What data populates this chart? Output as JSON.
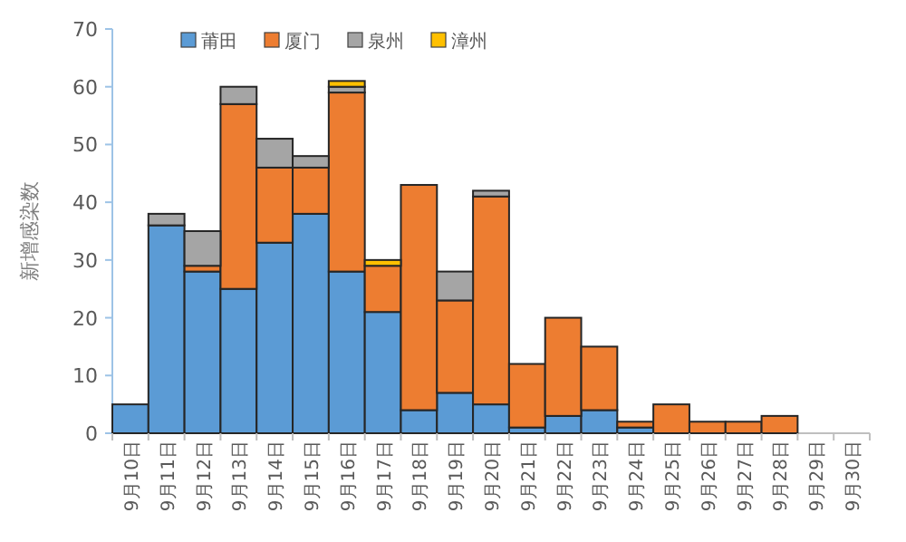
{
  "chart_data": {
    "type": "bar",
    "stacked": true,
    "ylabel": "新增感染数",
    "legend": "top",
    "categories": [
      "9月10日",
      "9月11日",
      "9月12日",
      "9月13日",
      "9月14日",
      "9月15日",
      "9月16日",
      "9月17日",
      "9月18日",
      "9月19日",
      "9月20日",
      "9月21日",
      "9月22日",
      "9月23日",
      "9月24日",
      "9月25日",
      "9月26日",
      "9月27日",
      "9月28日",
      "9月29日",
      "9月30日"
    ],
    "series": [
      {
        "name": "莆田",
        "color": "#5b9bd5",
        "values": [
          5,
          36,
          28,
          25,
          33,
          38,
          28,
          21,
          4,
          7,
          5,
          1,
          3,
          4,
          1,
          0,
          0,
          0,
          0,
          0,
          0
        ]
      },
      {
        "name": "厦门",
        "color": "#ed7d31",
        "values": [
          0,
          0,
          1,
          32,
          13,
          8,
          31,
          8,
          39,
          16,
          36,
          11,
          17,
          11,
          1,
          5,
          2,
          2,
          3,
          0,
          0
        ]
      },
      {
        "name": "泉州",
        "color": "#a5a5a5",
        "values": [
          0,
          2,
          6,
          3,
          5,
          2,
          1,
          0,
          0,
          5,
          1,
          0,
          0,
          0,
          0,
          0,
          0,
          0,
          0,
          0,
          0
        ]
      },
      {
        "name": "漳州",
        "color": "#ffc000",
        "values": [
          0,
          0,
          0,
          0,
          0,
          0,
          1,
          1,
          0,
          0,
          0,
          0,
          0,
          0,
          0,
          0,
          0,
          0,
          0,
          0,
          0
        ]
      }
    ],
    "ylim": [
      0,
      70
    ],
    "yticks": [
      0,
      10,
      20,
      30,
      40,
      50,
      60,
      70
    ]
  }
}
